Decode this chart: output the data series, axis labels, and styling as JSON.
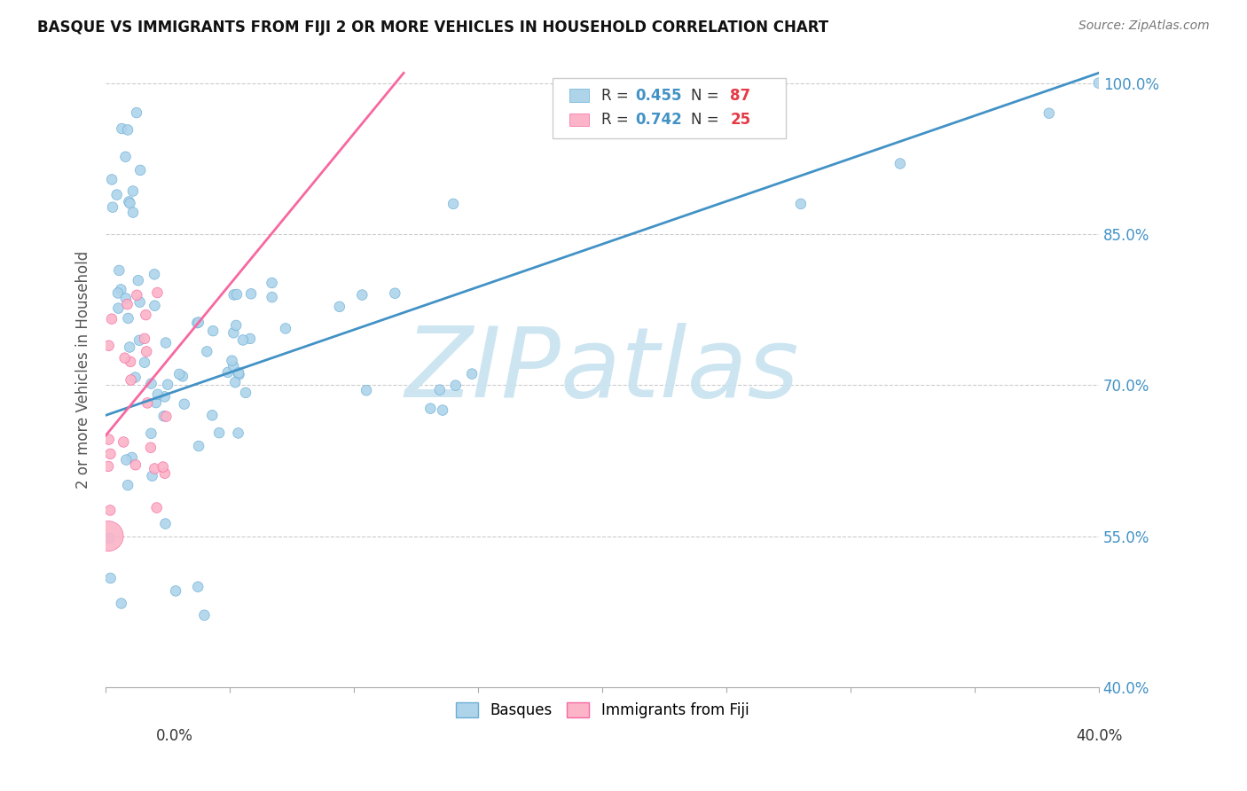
{
  "title": "BASQUE VS IMMIGRANTS FROM FIJI 2 OR MORE VEHICLES IN HOUSEHOLD CORRELATION CHART",
  "source": "Source: ZipAtlas.com",
  "ylabel": "2 or more Vehicles in Household",
  "ytick_vals": [
    1.0,
    0.85,
    0.7,
    0.55,
    0.4
  ],
  "ytick_labels": [
    "100.0%",
    "85.0%",
    "70.0%",
    "55.0%",
    "40.0%"
  ],
  "xlim": [
    0.0,
    0.4
  ],
  "ylim": [
    0.4,
    1.03
  ],
  "basque_color": "#aed4ea",
  "basque_edge": "#6baed6",
  "fiji_color": "#fbb4c8",
  "fiji_edge": "#f768a1",
  "basque_line_color": "#4292c6",
  "fiji_line_color": "#f768a1",
  "r1": "0.455",
  "n1": "87",
  "r2": "0.742",
  "n2": "25",
  "watermark": "ZIPatlas",
  "watermark_color": "#c8e3f0"
}
